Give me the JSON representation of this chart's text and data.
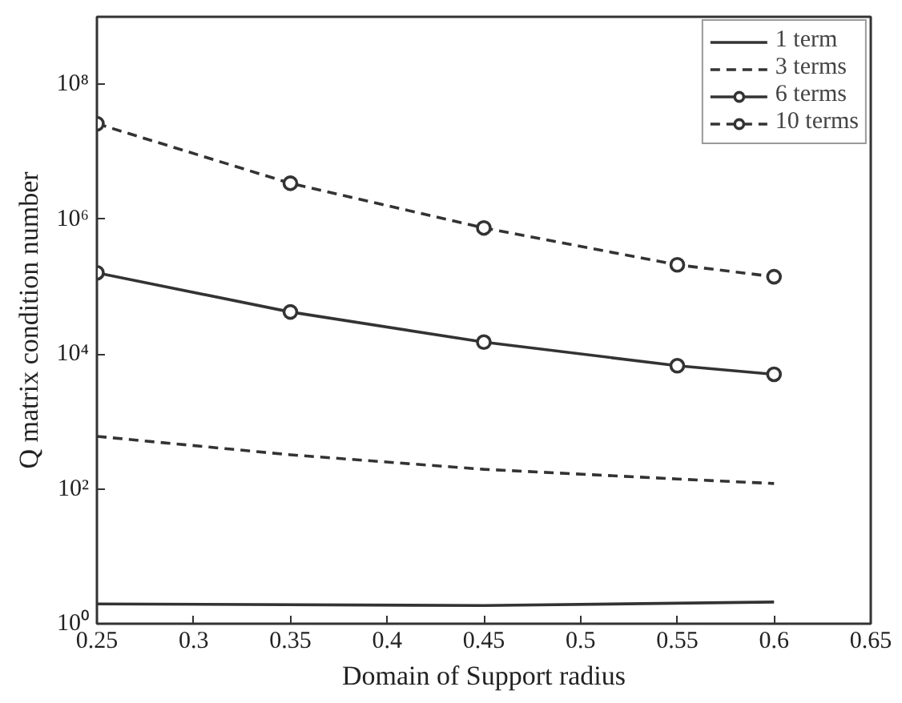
{
  "chart_data": {
    "type": "line",
    "xlabel": "Domain of Support radius",
    "ylabel": "Q matrix condition number",
    "log": "y",
    "xlim": [
      0.25,
      0.65
    ],
    "xticks": [
      0.25,
      0.3,
      0.35,
      0.4,
      0.45,
      0.5,
      0.55,
      0.6,
      0.65
    ],
    "ylim": [
      1,
      1000000000
    ],
    "yticks": [
      {
        "value": 1,
        "label": "10⁰"
      },
      {
        "value": 100,
        "label": "10²"
      },
      {
        "value": 10000,
        "label": "10⁴"
      },
      {
        "value": 1000000,
        "label": "10⁶"
      },
      {
        "value": 100000000,
        "label": "10⁸"
      }
    ],
    "grid": false,
    "legend": "top right",
    "series": [
      {
        "name": "1 term",
        "color": "#333333",
        "line_style": "solid",
        "marker": "none",
        "x": [
          0.25,
          0.45,
          0.6
        ],
        "values": [
          1.97,
          1.86,
          2.1
        ]
      },
      {
        "name": "3 terms",
        "color": "#333333",
        "line_style": "dashed",
        "marker": "none",
        "x": [
          0.25,
          0.35,
          0.45,
          0.55,
          0.6
        ],
        "values": [
          600,
          320,
          195,
          140,
          120
        ]
      },
      {
        "name": "6 terms",
        "color": "#333333",
        "line_style": "solid",
        "marker": "circle",
        "x": [
          0.25,
          0.35,
          0.45,
          0.55,
          0.6
        ],
        "values": [
          160000,
          42000,
          15000,
          6700,
          5000
        ]
      },
      {
        "name": "10 terms",
        "color": "#333333",
        "line_style": "dashed",
        "marker": "circle",
        "x": [
          0.25,
          0.35,
          0.45,
          0.55,
          0.6
        ],
        "values": [
          26000000,
          3400000,
          740000,
          210000,
          140000
        ]
      }
    ]
  }
}
